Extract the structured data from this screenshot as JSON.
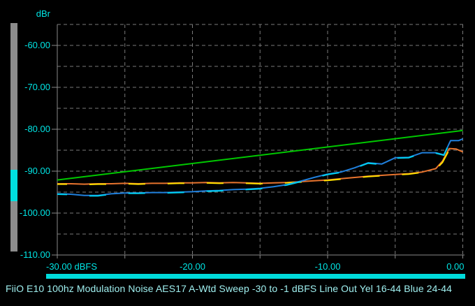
{
  "title": {
    "text": "FiiO E10 100hz Modulation Noise AES17 A-Wtd Sweep -30 to -1 dBFS Line Out Yel 16-44 Blue 24-44",
    "color": "#9FEFEF"
  },
  "axes": {
    "y": {
      "unit": "dBr",
      "min": -110,
      "max": -55,
      "grid_step": 5,
      "ticks": [
        {
          "value": -60,
          "label": "-60.00"
        },
        {
          "value": -70,
          "label": "-70.00"
        },
        {
          "value": -80,
          "label": "-80.00"
        },
        {
          "value": -90,
          "label": "-90.00"
        },
        {
          "value": -100,
          "label": "-100.00"
        },
        {
          "value": -110,
          "label": "-110.00"
        }
      ]
    },
    "x": {
      "unit": "dBFS",
      "min": -30,
      "max": 0,
      "grid_step": 5,
      "labels": [
        {
          "value": -30,
          "text": "-30.00 dBFS",
          "align": "left"
        },
        {
          "value": -20,
          "text": "-20.00",
          "align": "center"
        },
        {
          "value": -10,
          "text": "-10.00",
          "align": "center"
        },
        {
          "value": 0,
          "text": "0.00",
          "align": "right"
        }
      ]
    }
  },
  "meter": {
    "track_color": "#8C8C8C",
    "indicator_color": "#00E0E0",
    "indicator_hi_dbr": -89.7,
    "indicator_lo_dbr": -97.2
  },
  "progress_bar": {
    "color": "#00DCDC",
    "fraction": 1.0
  },
  "colors": {
    "background": "#000000",
    "grid": "#7A7A7A",
    "axis": "#8A8A8A",
    "tick_text": "#00E5E5"
  },
  "chart_data": {
    "type": "line",
    "title": "FiiO E10 100hz Modulation Noise AES17 A-Wtd Sweep -30 to -1 dBFS Line Out Yel 16-44 Blue 24-44",
    "xlabel": "dBFS",
    "ylabel": "dBr",
    "xlim": [
      -30,
      0
    ],
    "ylim": [
      -110,
      -55
    ],
    "grid": "dashed gray, every 5 dB both axes",
    "legend_position": "none (identified in title: Yel 16-44, Blue 24-44)",
    "series": [
      {
        "name": "green-reference",
        "color": "#00C800",
        "overlay_dash": false,
        "points": [
          [
            -30,
            -92.1
          ],
          [
            0,
            -80.3
          ]
        ]
      },
      {
        "name": "red-16-44",
        "color": "#E8742E",
        "overlay_dash": false,
        "points": [
          [
            -30,
            -93.0
          ],
          [
            -29,
            -93.0
          ],
          [
            -28,
            -93.1
          ],
          [
            -27,
            -93.0
          ],
          [
            -26,
            -93.0
          ],
          [
            -25,
            -92.9
          ],
          [
            -24,
            -93.0
          ],
          [
            -23,
            -92.9
          ],
          [
            -22,
            -92.9
          ],
          [
            -21,
            -92.8
          ],
          [
            -20,
            -92.8
          ],
          [
            -19,
            -92.7
          ],
          [
            -18,
            -92.8
          ],
          [
            -17,
            -92.7
          ],
          [
            -16,
            -92.8
          ],
          [
            -15,
            -92.9
          ],
          [
            -14,
            -92.8
          ],
          [
            -13,
            -92.7
          ],
          [
            -12,
            -92.5
          ],
          [
            -11,
            -92.3
          ],
          [
            -10,
            -92.1
          ],
          [
            -9,
            -91.8
          ],
          [
            -8,
            -91.5
          ],
          [
            -7,
            -91.2
          ],
          [
            -6,
            -91.0
          ],
          [
            -5,
            -90.8
          ],
          [
            -4,
            -90.6
          ],
          [
            -3,
            -90.2
          ],
          [
            -2,
            -89.4
          ],
          [
            -1.5,
            -87.6
          ],
          [
            -1,
            -84.6
          ],
          [
            -0.5,
            -84.7
          ],
          [
            0,
            -85.4
          ]
        ]
      },
      {
        "name": "yellow-16-44",
        "color": "#FFE000",
        "overlay_dash": true,
        "points": [
          [
            -30,
            -93.1
          ],
          [
            -29,
            -93.1
          ],
          [
            -28,
            -93.2
          ],
          [
            -27,
            -93.1
          ],
          [
            -26,
            -93.1
          ],
          [
            -25,
            -93.0
          ],
          [
            -24,
            -93.1
          ],
          [
            -23,
            -93.0
          ],
          [
            -22,
            -93.0
          ],
          [
            -21,
            -92.9
          ],
          [
            -20,
            -92.9
          ],
          [
            -19,
            -92.8
          ],
          [
            -18,
            -92.9
          ],
          [
            -17,
            -92.8
          ],
          [
            -16,
            -92.9
          ],
          [
            -15,
            -93.0
          ],
          [
            -14,
            -92.9
          ],
          [
            -13,
            -92.8
          ],
          [
            -12,
            -92.6
          ],
          [
            -11,
            -92.4
          ],
          [
            -10,
            -92.2
          ],
          [
            -9,
            -91.9
          ],
          [
            -8,
            -91.6
          ],
          [
            -7,
            -91.3
          ],
          [
            -6,
            -91.1
          ],
          [
            -5,
            -90.9
          ],
          [
            -4,
            -90.7
          ],
          [
            -3,
            -90.3
          ],
          [
            -2,
            -89.6
          ],
          [
            -1.5,
            -87.9
          ],
          [
            -1,
            -84.9
          ],
          [
            -0.5,
            -85.0
          ],
          [
            0,
            -85.7
          ]
        ]
      },
      {
        "name": "blue-24-44",
        "color": "#2080DD",
        "overlay_dash": false,
        "points": [
          [
            -30,
            -95.4
          ],
          [
            -29,
            -95.5
          ],
          [
            -28,
            -95.8
          ],
          [
            -27,
            -95.8
          ],
          [
            -26,
            -95.4
          ],
          [
            -25,
            -95.2
          ],
          [
            -24,
            -95.2
          ],
          [
            -23,
            -95.1
          ],
          [
            -22,
            -95.1
          ],
          [
            -21,
            -95.0
          ],
          [
            -20,
            -94.9
          ],
          [
            -19,
            -94.7
          ],
          [
            -18,
            -94.6
          ],
          [
            -17,
            -94.4
          ],
          [
            -16,
            -94.3
          ],
          [
            -15,
            -94.1
          ],
          [
            -14,
            -93.7
          ],
          [
            -13,
            -93.2
          ],
          [
            -12,
            -92.4
          ],
          [
            -11,
            -91.5
          ],
          [
            -10,
            -90.7
          ],
          [
            -9,
            -90.2
          ],
          [
            -8,
            -89.2
          ],
          [
            -7,
            -88.0
          ],
          [
            -6,
            -88.3
          ],
          [
            -5,
            -86.8
          ],
          [
            -4,
            -86.7
          ],
          [
            -3,
            -85.6
          ],
          [
            -2,
            -85.6
          ],
          [
            -1.4,
            -86.1
          ],
          [
            -0.9,
            -82.7
          ],
          [
            -0.3,
            -82.7
          ],
          [
            0,
            -82.3
          ]
        ]
      },
      {
        "name": "cyan-24-44",
        "color": "#00CFF0",
        "overlay_dash": true,
        "points": [
          [
            -30,
            -95.5
          ],
          [
            -29,
            -95.6
          ],
          [
            -28,
            -95.9
          ],
          [
            -27,
            -95.9
          ],
          [
            -26,
            -95.5
          ],
          [
            -25,
            -95.3
          ],
          [
            -24,
            -95.3
          ],
          [
            -23,
            -95.2
          ],
          [
            -22,
            -95.2
          ],
          [
            -21,
            -95.1
          ],
          [
            -20,
            -95.0
          ],
          [
            -19,
            -94.8
          ],
          [
            -18,
            -94.7
          ],
          [
            -17,
            -94.5
          ],
          [
            -16,
            -94.4
          ],
          [
            -15,
            -94.2
          ],
          [
            -14,
            -93.8
          ],
          [
            -13,
            -93.3
          ],
          [
            -12,
            -92.5
          ],
          [
            -11,
            -91.6
          ],
          [
            -10,
            -90.8
          ],
          [
            -9,
            -90.3
          ],
          [
            -8,
            -89.3
          ],
          [
            -7,
            -88.1
          ],
          [
            -6,
            -88.4
          ],
          [
            -5,
            -86.9
          ],
          [
            -4,
            -86.8
          ],
          [
            -3,
            -85.7
          ],
          [
            -2,
            -85.7
          ],
          [
            -1.4,
            -86.2
          ],
          [
            -0.9,
            -82.8
          ],
          [
            -0.3,
            -82.8
          ],
          [
            0,
            -82.4
          ]
        ]
      }
    ]
  }
}
